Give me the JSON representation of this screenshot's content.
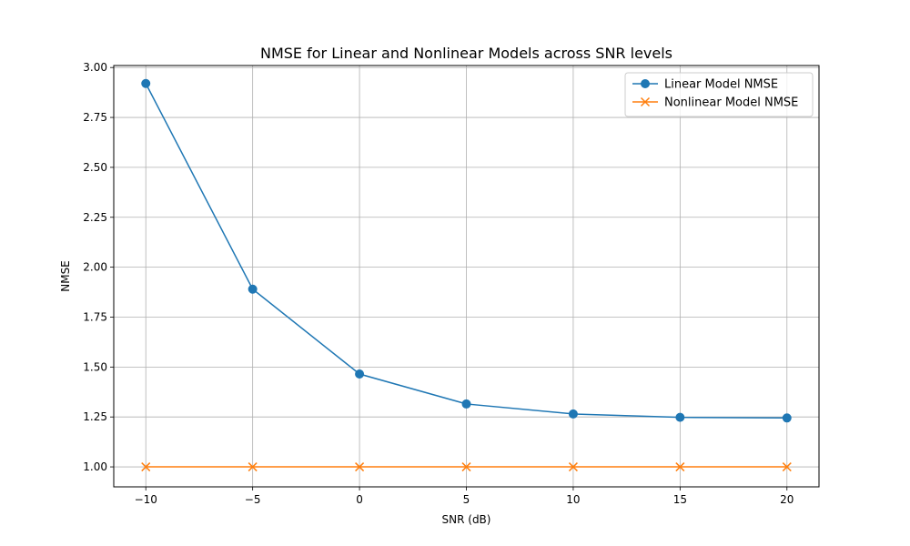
{
  "chart_data": {
    "type": "line",
    "title": "NMSE for Linear and Nonlinear Models across SNR levels",
    "xlabel": "SNR (dB)",
    "ylabel": "NMSE",
    "x": [
      -10,
      -5,
      0,
      5,
      10,
      15,
      20
    ],
    "xlim": [
      -11.5,
      21.5
    ],
    "ylim": [
      0.9,
      3.01
    ],
    "xticks": [
      -10,
      -5,
      0,
      5,
      10,
      15,
      20
    ],
    "xtick_labels": [
      "−10",
      "−5",
      "0",
      "5",
      "10",
      "15",
      "20"
    ],
    "yticks": [
      1.0,
      1.25,
      1.5,
      1.75,
      2.0,
      2.25,
      2.5,
      2.75,
      3.0
    ],
    "ytick_labels": [
      "1.00",
      "1.25",
      "1.50",
      "1.75",
      "2.00",
      "2.25",
      "2.50",
      "2.75",
      "3.00"
    ],
    "grid": true,
    "legend_position": "top-right",
    "series": [
      {
        "name": "Linear Model NMSE",
        "values": [
          2.92,
          1.89,
          1.465,
          1.315,
          1.265,
          1.248,
          1.245
        ],
        "color": "#1f77b4",
        "marker": "circle"
      },
      {
        "name": "Nonlinear Model NMSE",
        "values": [
          1.0,
          1.0,
          1.0,
          1.0,
          1.0,
          1.0,
          1.0
        ],
        "color": "#ff7f0e",
        "marker": "x"
      }
    ]
  }
}
